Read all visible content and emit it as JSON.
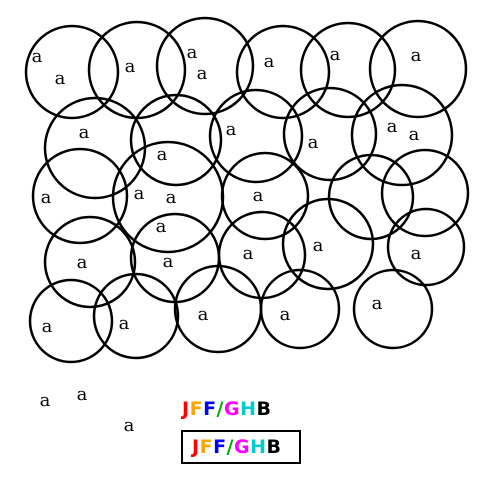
{
  "glyph": "a",
  "word_letters": [
    {
      "ch": "J",
      "color": "#ff0000"
    },
    {
      "ch": "F",
      "color": "#ffa500"
    },
    {
      "ch": "F",
      "color": "#0000ff"
    },
    {
      "ch": "/",
      "color": "#00aa00"
    },
    {
      "ch": "G",
      "color": "#ff00ff"
    },
    {
      "ch": "H",
      "color": "#00cccc"
    },
    {
      "ch": "B",
      "color": "#000000"
    }
  ],
  "circle_stroke": "#000000",
  "background": "#ffffff"
}
